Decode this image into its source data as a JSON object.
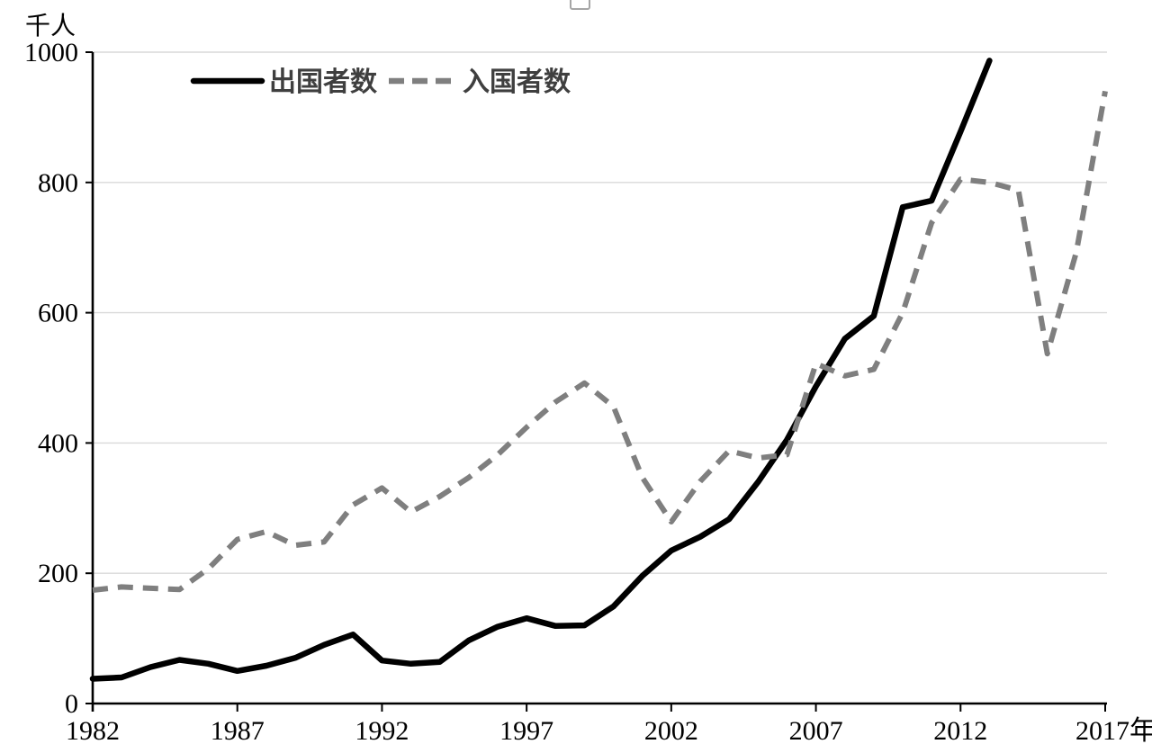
{
  "chart_data": {
    "type": "line",
    "title": "",
    "ylabel": "千人",
    "xlabel": "年",
    "ylim": [
      0,
      1000
    ],
    "xlim": [
      1982,
      2017
    ],
    "grid": "horizontal-light",
    "legend_position": "top-center",
    "y_ticks": [
      0,
      200,
      400,
      600,
      800,
      1000
    ],
    "y_tick_labels": [
      "0",
      "200",
      "400",
      "600",
      "800",
      "1000"
    ],
    "x_ticks": [
      1982,
      1987,
      1992,
      1997,
      2002,
      2007,
      2012,
      2017
    ],
    "x_tick_labels": [
      "1982",
      "1987",
      "1992",
      "1997",
      "2002",
      "2007",
      "2012",
      "2017年"
    ],
    "series": [
      {
        "name": "出国者数",
        "style": "solid",
        "color": "#000000",
        "start_year": 1982,
        "values": [
          38,
          40,
          56,
          67,
          61,
          50,
          58,
          70,
          90,
          106,
          66,
          61,
          64,
          97,
          118,
          131,
          119,
          120,
          149,
          196,
          235,
          256,
          283,
          340,
          405,
          487,
          560,
          595,
          762,
          772,
          878,
          987
        ]
      },
      {
        "name": "入国者数",
        "style": "dashed",
        "color": "#7f7f7f",
        "start_year": 1982,
        "values": [
          174,
          179,
          177,
          175,
          207,
          252,
          264,
          243,
          248,
          305,
          331,
          294,
          318,
          347,
          382,
          424,
          463,
          492,
          456,
          347,
          279,
          341,
          388,
          377,
          382,
          522,
          503,
          513,
          600,
          738,
          805,
          800,
          788,
          537,
          693,
          940
        ]
      }
    ],
    "colors": {
      "grid": "#d9d9d9",
      "axis": "#000000",
      "legend_text": "#3f3f3f"
    }
  }
}
